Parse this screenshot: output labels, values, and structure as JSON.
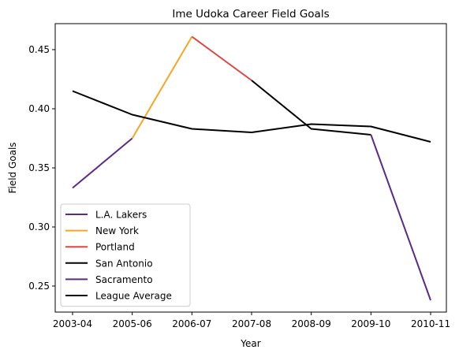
{
  "chart_data": {
    "type": "line",
    "title": "Ime Udoka Career Field Goals",
    "xlabel": "Year",
    "ylabel": "Field Goals",
    "categories": [
      "2003-04",
      "2005-06",
      "2006-07",
      "2007-08",
      "2008-09",
      "2009-10",
      "2010-11"
    ],
    "ylim": [
      0.228,
      0.472
    ],
    "yticks": [
      "0.25",
      "0.30",
      "0.35",
      "0.40",
      "0.45"
    ],
    "grid": false,
    "legend_position": "lower-left",
    "series": [
      {
        "name": "L.A. Lakers",
        "color": "#5b2a86",
        "points": [
          [
            0,
            0.333
          ],
          [
            1,
            0.375
          ]
        ]
      },
      {
        "name": "New York",
        "color": "#f5a623",
        "points": [
          [
            1,
            0.375
          ],
          [
            2,
            0.461
          ]
        ]
      },
      {
        "name": "Portland",
        "color": "#e04343",
        "points": [
          [
            2,
            0.461
          ],
          [
            3,
            0.424
          ]
        ]
      },
      {
        "name": "San Antonio",
        "color": "#000000",
        "points": [
          [
            3,
            0.424
          ],
          [
            4,
            0.383
          ],
          [
            5,
            0.378
          ]
        ]
      },
      {
        "name": "Sacramento",
        "color": "#5b2a86",
        "points": [
          [
            5,
            0.378
          ],
          [
            6,
            0.238
          ]
        ]
      },
      {
        "name": "League Average",
        "color": "#000000",
        "points": [
          [
            0,
            0.415
          ],
          [
            1,
            0.395
          ],
          [
            2,
            0.383
          ],
          [
            3,
            0.38
          ],
          [
            4,
            0.387
          ],
          [
            5,
            0.385
          ],
          [
            6,
            0.372
          ]
        ]
      }
    ]
  }
}
